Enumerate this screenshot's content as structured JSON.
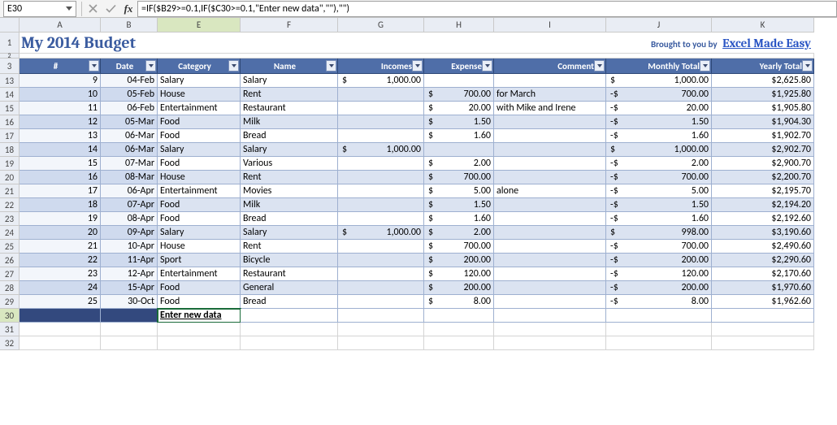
{
  "formula_bar": {
    "cell_ref": "E30",
    "formula": "=IF($B29>=0.1,IF($C30>=0.1,\"Enter new data\",\"\"),\"\")"
  },
  "columns": [
    "A",
    "B",
    "C",
    "D",
    "E",
    "F",
    "G",
    "H",
    "I",
    "J",
    "K"
  ],
  "selected_col_index": 4,
  "selected_row_num": 30,
  "title": {
    "text": "My 2014 Budget",
    "brought": "Brought to you by",
    "link": "Excel Made Easy"
  },
  "headers": [
    "#",
    "Date",
    "Category",
    "Name",
    "Incomes",
    "Expense",
    "Comment",
    "Monthly Total",
    "Yearly Total"
  ],
  "rows": [
    {
      "rn": 13,
      "band": 0,
      "num": "9",
      "date": "04-Feb",
      "cat": "Salary",
      "name": "Salary",
      "inc": "1,000.00",
      "exp": "",
      "cmt": "",
      "mt": "1,000.00",
      "mneg": 0,
      "yt": "$2,625.80"
    },
    {
      "rn": 14,
      "band": 1,
      "num": "10",
      "date": "05-Feb",
      "cat": "House",
      "name": "Rent",
      "inc": "",
      "exp": "700.00",
      "cmt": "for March",
      "mt": "700.00",
      "mneg": 1,
      "yt": "$1,925.80"
    },
    {
      "rn": 15,
      "band": 0,
      "num": "11",
      "date": "06-Feb",
      "cat": "Entertainment",
      "name": "Restaurant",
      "inc": "",
      "exp": "20.00",
      "cmt": "with Mike and Irene",
      "mt": "20.00",
      "mneg": 1,
      "yt": "$1,905.80"
    },
    {
      "rn": 16,
      "band": 1,
      "num": "12",
      "date": "05-Mar",
      "cat": "Food",
      "name": "Milk",
      "inc": "",
      "exp": "1.50",
      "cmt": "",
      "mt": "1.50",
      "mneg": 1,
      "yt": "$1,904.30"
    },
    {
      "rn": 17,
      "band": 0,
      "num": "13",
      "date": "06-Mar",
      "cat": "Food",
      "name": "Bread",
      "inc": "",
      "exp": "1.60",
      "cmt": "",
      "mt": "1.60",
      "mneg": 1,
      "yt": "$1,902.70"
    },
    {
      "rn": 18,
      "band": 1,
      "num": "14",
      "date": "06-Mar",
      "cat": "Salary",
      "name": "Salary",
      "inc": "1,000.00",
      "exp": "",
      "cmt": "",
      "mt": "1,000.00",
      "mneg": 0,
      "yt": "$2,902.70"
    },
    {
      "rn": 19,
      "band": 0,
      "num": "15",
      "date": "07-Mar",
      "cat": "Food",
      "name": "Various",
      "inc": "",
      "exp": "2.00",
      "cmt": "",
      "mt": "2.00",
      "mneg": 1,
      "yt": "$2,900.70"
    },
    {
      "rn": 20,
      "band": 1,
      "num": "16",
      "date": "08-Mar",
      "cat": "House",
      "name": "Rent",
      "inc": "",
      "exp": "700.00",
      "cmt": "",
      "mt": "700.00",
      "mneg": 1,
      "yt": "$2,200.70"
    },
    {
      "rn": 21,
      "band": 0,
      "num": "17",
      "date": "06-Apr",
      "cat": "Entertainment",
      "name": "Movies",
      "inc": "",
      "exp": "5.00",
      "cmt": "alone",
      "mt": "5.00",
      "mneg": 1,
      "yt": "$2,195.70"
    },
    {
      "rn": 22,
      "band": 1,
      "num": "18",
      "date": "07-Apr",
      "cat": "Food",
      "name": "Milk",
      "inc": "",
      "exp": "1.50",
      "cmt": "",
      "mt": "1.50",
      "mneg": 1,
      "yt": "$2,194.20"
    },
    {
      "rn": 23,
      "band": 0,
      "num": "19",
      "date": "08-Apr",
      "cat": "Food",
      "name": "Bread",
      "inc": "",
      "exp": "1.60",
      "cmt": "",
      "mt": "1.60",
      "mneg": 1,
      "yt": "$2,192.60"
    },
    {
      "rn": 24,
      "band": 1,
      "num": "20",
      "date": "09-Apr",
      "cat": "Salary",
      "name": "Salary",
      "inc": "1,000.00",
      "exp": "2.00",
      "cmt": "",
      "mt": "998.00",
      "mneg": 0,
      "yt": "$3,190.60"
    },
    {
      "rn": 25,
      "band": 0,
      "num": "21",
      "date": "10-Apr",
      "cat": "House",
      "name": "Rent",
      "inc": "",
      "exp": "700.00",
      "cmt": "",
      "mt": "700.00",
      "mneg": 1,
      "yt": "$2,490.60"
    },
    {
      "rn": 26,
      "band": 1,
      "num": "22",
      "date": "11-Apr",
      "cat": "Sport",
      "name": "Bicycle",
      "inc": "",
      "exp": "200.00",
      "cmt": "",
      "mt": "200.00",
      "mneg": 1,
      "yt": "$2,290.60"
    },
    {
      "rn": 27,
      "band": 0,
      "num": "23",
      "date": "12-Apr",
      "cat": "Entertainment",
      "name": "Restaurant",
      "inc": "",
      "exp": "120.00",
      "cmt": "",
      "mt": "120.00",
      "mneg": 1,
      "yt": "$2,170.60"
    },
    {
      "rn": 28,
      "band": 1,
      "num": "24",
      "date": "15-Apr",
      "cat": "Food",
      "name": "General",
      "inc": "",
      "exp": "200.00",
      "cmt": "",
      "mt": "200.00",
      "mneg": 1,
      "yt": "$1,970.60"
    },
    {
      "rn": 29,
      "band": 0,
      "num": "25",
      "date": "30-Oct",
      "cat": "Food",
      "name": "Bread",
      "inc": "",
      "exp": "8.00",
      "cmt": "",
      "mt": "8.00",
      "mneg": 1,
      "yt": "$1,962.60"
    }
  ],
  "input_row": {
    "rn": 30,
    "text": "Enter new data"
  },
  "blank_rows": [
    31,
    32
  ]
}
